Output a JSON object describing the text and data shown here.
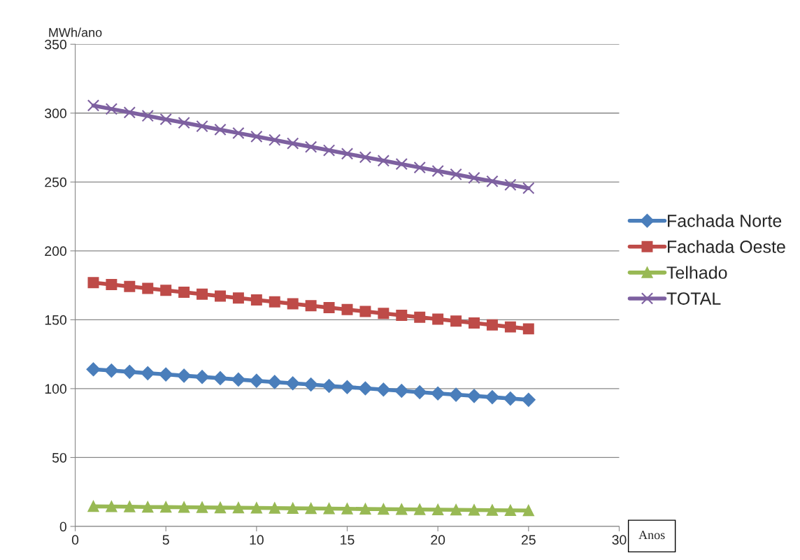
{
  "chart_data": {
    "type": "line",
    "ylabel": "MWh/ano",
    "xlabel": "Anos",
    "x": [
      1,
      2,
      3,
      4,
      5,
      6,
      7,
      8,
      9,
      10,
      11,
      12,
      13,
      14,
      15,
      16,
      17,
      18,
      19,
      20,
      21,
      22,
      23,
      24,
      25
    ],
    "series": [
      {
        "name": "Fachada Norte",
        "color": "#4a7ebb",
        "marker": "diamond",
        "values": [
          114,
          113.1,
          112.2,
          111.2,
          110.3,
          109.4,
          108.5,
          107.6,
          106.6,
          105.7,
          104.8,
          103.9,
          103,
          102,
          101.1,
          100.2,
          99.3,
          98.4,
          97.4,
          96.5,
          95.6,
          94.7,
          93.8,
          92.8,
          91.9
        ]
      },
      {
        "name": "Fachada Oeste",
        "color": "#be4b48",
        "marker": "square",
        "values": [
          177,
          175.6,
          174.2,
          172.8,
          171.4,
          170,
          168.6,
          167.2,
          165.8,
          164.4,
          163,
          161.6,
          160.2,
          158.8,
          157.4,
          156,
          154.6,
          153.2,
          151.8,
          150.4,
          149,
          147.6,
          146.2,
          144.8,
          143.4
        ]
      },
      {
        "name": "Telhado",
        "color": "#98b954",
        "marker": "triangle",
        "values": [
          14.5,
          14.4,
          14.3,
          14.1,
          14,
          13.9,
          13.8,
          13.6,
          13.5,
          13.4,
          13.3,
          13.1,
          13,
          12.9,
          12.8,
          12.6,
          12.5,
          12.4,
          12.3,
          12.1,
          12,
          11.9,
          11.8,
          11.6,
          11.5
        ]
      },
      {
        "name": "TOTAL",
        "color": "#7d60a0",
        "marker": "cross",
        "values": [
          305.5,
          303,
          300.5,
          298,
          295.5,
          293,
          290.5,
          288,
          285.5,
          283,
          280.5,
          278,
          275.5,
          273,
          270.5,
          268,
          265.5,
          263,
          260.5,
          258,
          255.5,
          253,
          250.5,
          248,
          245.5
        ]
      }
    ],
    "xlim": [
      0,
      30
    ],
    "xticks": [
      0,
      5,
      10,
      15,
      20,
      25,
      30
    ],
    "ylim": [
      0,
      350
    ],
    "yticks": [
      0,
      50,
      100,
      150,
      200,
      250,
      300,
      350
    ],
    "grid": "y",
    "legend": "right",
    "line_style": "solid"
  }
}
